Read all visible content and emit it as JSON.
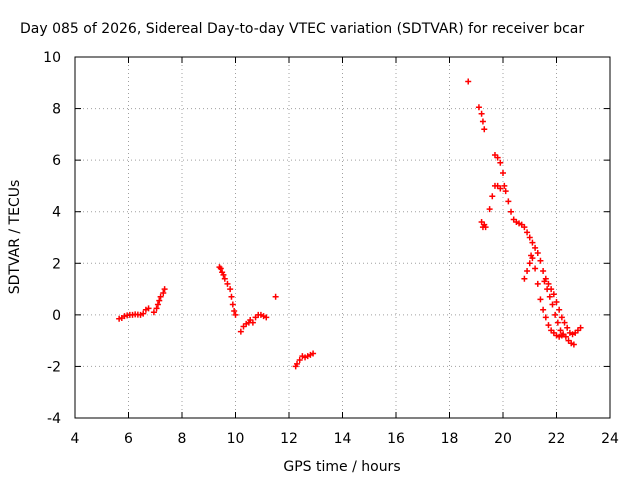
{
  "chart_data": {
    "type": "scatter",
    "title": "Day 085 of 2026, Sidereal Day-to-day VTEC variation (SDTVAR) for receiver bcar",
    "xlabel": "GPS time / hours",
    "ylabel": "SDTVAR / TECUs",
    "xlim": [
      4,
      24
    ],
    "ylim": [
      -4,
      10
    ],
    "xticks": [
      "4",
      "6",
      "8",
      "10",
      "12",
      "14",
      "16",
      "18",
      "20",
      "22",
      "24"
    ],
    "yticks": [
      "-4",
      "-2",
      "0",
      "2",
      "4",
      "6",
      "8",
      "10"
    ],
    "grid": true,
    "marker": "+",
    "marker_color": "#ff0000",
    "series": [
      {
        "name": "SDTVAR",
        "points": [
          [
            5.65,
            -0.15
          ],
          [
            5.75,
            -0.12
          ],
          [
            5.85,
            -0.05
          ],
          [
            5.95,
            -0.02
          ],
          [
            6.05,
            0.0
          ],
          [
            6.15,
            0.0
          ],
          [
            6.25,
            0.02
          ],
          [
            6.35,
            0.01
          ],
          [
            6.45,
            0.0
          ],
          [
            6.55,
            0.05
          ],
          [
            6.65,
            0.2
          ],
          [
            6.75,
            0.25
          ],
          [
            6.95,
            0.1
          ],
          [
            7.05,
            0.25
          ],
          [
            7.1,
            0.4
          ],
          [
            7.15,
            0.55
          ],
          [
            7.2,
            0.7
          ],
          [
            7.3,
            0.85
          ],
          [
            7.35,
            1.0
          ],
          [
            9.4,
            1.85
          ],
          [
            9.45,
            1.8
          ],
          [
            9.5,
            1.65
          ],
          [
            9.55,
            1.55
          ],
          [
            9.6,
            1.4
          ],
          [
            9.7,
            1.2
          ],
          [
            9.8,
            1.0
          ],
          [
            9.85,
            0.7
          ],
          [
            9.9,
            0.4
          ],
          [
            9.95,
            0.15
          ],
          [
            10.0,
            0.0
          ],
          [
            10.2,
            -0.65
          ],
          [
            10.3,
            -0.45
          ],
          [
            10.4,
            -0.35
          ],
          [
            10.5,
            -0.3
          ],
          [
            10.55,
            -0.2
          ],
          [
            10.65,
            -0.3
          ],
          [
            10.75,
            -0.1
          ],
          [
            10.85,
            0.0
          ],
          [
            10.95,
            0.0
          ],
          [
            11.05,
            -0.05
          ],
          [
            11.15,
            -0.1
          ],
          [
            11.5,
            0.7
          ],
          [
            12.25,
            -2.0
          ],
          [
            12.3,
            -1.9
          ],
          [
            12.4,
            -1.75
          ],
          [
            12.5,
            -1.6
          ],
          [
            12.6,
            -1.65
          ],
          [
            12.7,
            -1.6
          ],
          [
            12.8,
            -1.55
          ],
          [
            12.9,
            -1.5
          ],
          [
            18.7,
            9.05
          ],
          [
            19.1,
            8.05
          ],
          [
            19.2,
            7.8
          ],
          [
            19.25,
            7.5
          ],
          [
            19.3,
            7.2
          ],
          [
            19.2,
            3.6
          ],
          [
            19.25,
            3.4
          ],
          [
            19.3,
            3.5
          ],
          [
            19.35,
            3.4
          ],
          [
            19.5,
            4.1
          ],
          [
            19.6,
            4.6
          ],
          [
            19.7,
            5.0
          ],
          [
            19.8,
            5.0
          ],
          [
            19.9,
            4.9
          ],
          [
            19.7,
            6.2
          ],
          [
            19.8,
            6.1
          ],
          [
            19.9,
            5.9
          ],
          [
            20.0,
            5.5
          ],
          [
            20.05,
            5.0
          ],
          [
            20.1,
            4.8
          ],
          [
            20.2,
            4.4
          ],
          [
            20.3,
            4.0
          ],
          [
            20.4,
            3.7
          ],
          [
            20.5,
            3.6
          ],
          [
            20.6,
            3.55
          ],
          [
            20.7,
            3.5
          ],
          [
            20.8,
            3.4
          ],
          [
            20.9,
            3.2
          ],
          [
            21.0,
            3.0
          ],
          [
            21.1,
            2.8
          ],
          [
            21.2,
            2.6
          ],
          [
            21.3,
            2.4
          ],
          [
            21.4,
            2.1
          ],
          [
            21.5,
            1.7
          ],
          [
            21.55,
            1.3
          ],
          [
            21.65,
            1.0
          ],
          [
            21.75,
            0.7
          ],
          [
            21.85,
            0.4
          ],
          [
            21.95,
            0.0
          ],
          [
            22.05,
            -0.3
          ],
          [
            22.15,
            -0.6
          ],
          [
            22.25,
            -0.75
          ],
          [
            22.35,
            -0.85
          ],
          [
            22.45,
            -1.0
          ],
          [
            22.55,
            -1.1
          ],
          [
            22.65,
            -1.15
          ],
          [
            20.8,
            1.4
          ],
          [
            20.9,
            1.7
          ],
          [
            21.0,
            2.0
          ],
          [
            21.05,
            2.3
          ],
          [
            21.1,
            2.2
          ],
          [
            21.2,
            1.8
          ],
          [
            21.3,
            1.2
          ],
          [
            21.4,
            0.6
          ],
          [
            21.5,
            0.2
          ],
          [
            21.6,
            -0.1
          ],
          [
            21.7,
            -0.4
          ],
          [
            21.8,
            -0.6
          ],
          [
            21.9,
            -0.7
          ],
          [
            22.0,
            -0.8
          ],
          [
            22.1,
            -0.85
          ],
          [
            22.2,
            -0.8
          ],
          [
            21.6,
            1.4
          ],
          [
            21.7,
            1.2
          ],
          [
            21.8,
            1.0
          ],
          [
            21.9,
            0.8
          ],
          [
            22.0,
            0.5
          ],
          [
            22.1,
            0.2
          ],
          [
            22.2,
            -0.1
          ],
          [
            22.3,
            -0.3
          ],
          [
            22.4,
            -0.5
          ],
          [
            22.5,
            -0.7
          ],
          [
            22.6,
            -0.75
          ],
          [
            22.7,
            -0.7
          ],
          [
            22.8,
            -0.6
          ],
          [
            22.9,
            -0.5
          ]
        ]
      }
    ]
  }
}
